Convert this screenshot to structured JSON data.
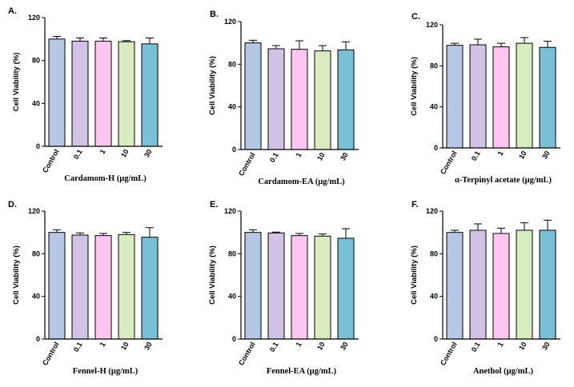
{
  "chart_data": [
    {
      "type": "bar",
      "panel": "A.",
      "title": "",
      "categories": [
        "Control",
        "0.1",
        "1",
        "10",
        "30"
      ],
      "values": [
        100,
        98,
        98,
        97.5,
        95.5
      ],
      "errors": [
        2.5,
        3,
        3,
        1,
        5.5
      ],
      "colors": [
        "#b4c8e6",
        "#d2c2e6",
        "#fcc6f0",
        "#d8ecc0",
        "#78c0d6"
      ],
      "xlabel": "Cardamom-H (μg/mL)",
      "ylabel": "Cell Viability (%)",
      "ylim": [
        0,
        120
      ],
      "yticks": [
        "0",
        "40",
        "80",
        "120"
      ]
    },
    {
      "type": "bar",
      "panel": "B.",
      "title": "",
      "categories": [
        "Control",
        "0.1",
        "1",
        "10",
        "30"
      ],
      "values": [
        100,
        94.5,
        94,
        92.5,
        93.5
      ],
      "errors": [
        2.5,
        3,
        8,
        5,
        7.5
      ],
      "colors": [
        "#b4c8e6",
        "#d2c2e6",
        "#fcc6f0",
        "#d8ecc0",
        "#78c0d6"
      ],
      "xlabel": "Cardamom-EA (μg/mL)",
      "ylabel": "Cell Viability (%)",
      "ylim": [
        0,
        120
      ],
      "yticks": [
        "0",
        "40",
        "80",
        "120"
      ]
    },
    {
      "type": "bar",
      "panel": "C.",
      "title": "",
      "categories": [
        "Control",
        "0.1",
        "1",
        "10",
        "30"
      ],
      "values": [
        100,
        100.5,
        98.5,
        102,
        98
      ],
      "errors": [
        2,
        5.5,
        3.5,
        5.5,
        6
      ],
      "colors": [
        "#b4c8e6",
        "#d2c2e6",
        "#fcc6f0",
        "#d8ecc0",
        "#78c0d6"
      ],
      "xlabel": "α-Terpinyl acetate (μg/mL)",
      "ylabel": "Cell Viability (%)",
      "ylim": [
        0,
        120
      ],
      "yticks": [
        "0",
        "40",
        "80",
        "120"
      ]
    },
    {
      "type": "bar",
      "panel": "D.",
      "title": "",
      "categories": [
        "Control",
        "0.1",
        "1",
        "10",
        "30"
      ],
      "values": [
        100,
        97.5,
        97,
        98,
        95.5
      ],
      "errors": [
        2.5,
        2,
        2,
        2,
        9
      ],
      "colors": [
        "#b4c8e6",
        "#d2c2e6",
        "#fcc6f0",
        "#d8ecc0",
        "#78c0d6"
      ],
      "xlabel": "Fennel-H (μg/mL)",
      "ylabel": "Cell Viability (%)",
      "ylim": [
        0,
        120
      ],
      "yticks": [
        "0",
        "40",
        "80",
        "120"
      ]
    },
    {
      "type": "bar",
      "panel": "E.",
      "title": "",
      "categories": [
        "Control",
        "0.1",
        "1",
        "10",
        "30"
      ],
      "values": [
        100,
        99.5,
        97,
        96.5,
        94.5
      ],
      "errors": [
        2.5,
        0.8,
        2,
        2,
        9
      ],
      "colors": [
        "#b4c8e6",
        "#d2c2e6",
        "#fcc6f0",
        "#d8ecc0",
        "#78c0d6"
      ],
      "xlabel": "Fennel-EA (μg/mL)",
      "ylabel": "Cell Viability (%)",
      "ylim": [
        0,
        120
      ],
      "yticks": [
        "0",
        "40",
        "80",
        "120"
      ]
    },
    {
      "type": "bar",
      "panel": "F.",
      "title": "",
      "categories": [
        "Control",
        "0.1",
        "1",
        "10",
        "30"
      ],
      "values": [
        100,
        102,
        99,
        102,
        102
      ],
      "errors": [
        2,
        6,
        5,
        7,
        9.5
      ],
      "colors": [
        "#b4c8e6",
        "#d2c2e6",
        "#fcc6f0",
        "#d8ecc0",
        "#78c0d6"
      ],
      "xlabel": "Anethol (μg/mL)",
      "ylabel": "Cell Viability (%)",
      "ylim": [
        0,
        120
      ],
      "yticks": [
        "0",
        "40",
        "80",
        "120"
      ]
    }
  ]
}
